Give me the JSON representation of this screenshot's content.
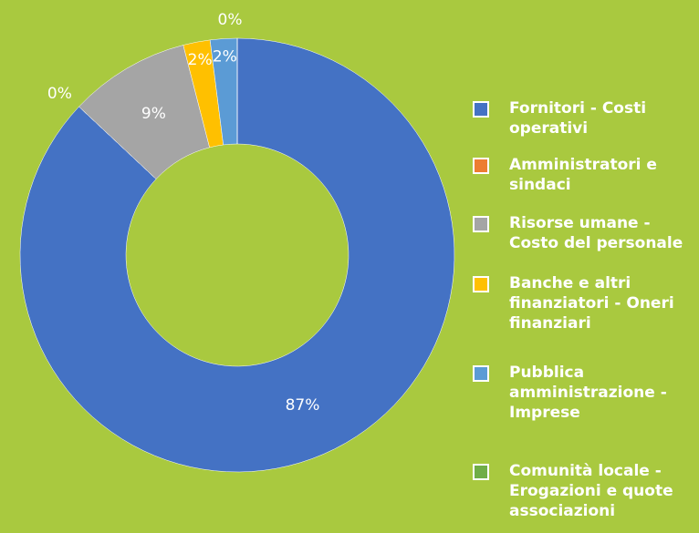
{
  "chart_data": {
    "type": "donut",
    "categories": [
      "Fornitori - Costi operativi",
      "Amministratori e sindaci",
      "Risorse umane - Costo del personale",
      "Banche e altri finanziatori - Oneri finanziari",
      "Pubblica amministrazione - Imprese",
      "Comunità locale - Erogazioni e quote associazioni"
    ],
    "values": [
      87,
      0,
      9,
      2,
      2,
      0
    ],
    "value_labels": [
      "87%",
      "0%",
      "9%",
      "2%",
      "2%",
      "0%"
    ],
    "colors": [
      "#4472c4",
      "#ed7d31",
      "#a5a5a5",
      "#ffc000",
      "#5b9bd5",
      "#70ad47"
    ],
    "legend": "right"
  }
}
